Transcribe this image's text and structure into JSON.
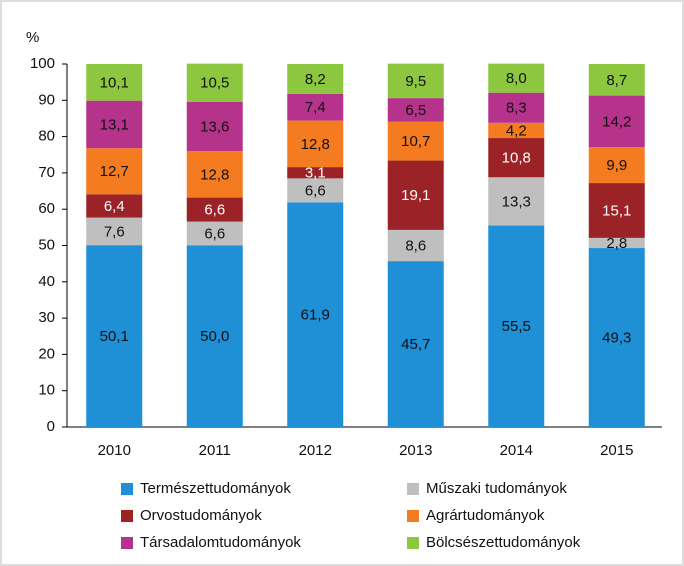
{
  "chart_data": {
    "type": "stacked_bar",
    "y_label": "%",
    "categories": [
      "2010",
      "2011",
      "2012",
      "2013",
      "2014",
      "2015"
    ],
    "series": [
      {
        "name": "Természettudományok",
        "color": "#1f8fd6",
        "values": [
          50.1,
          50.0,
          61.9,
          45.7,
          55.5,
          49.3
        ],
        "value_labels": [
          "50,1",
          "50,0",
          "61,9",
          "45,7",
          "55,5",
          "49,3"
        ]
      },
      {
        "name": "Műszaki tudományok",
        "color": "#bfbfbf",
        "values": [
          7.6,
          6.6,
          6.6,
          8.6,
          13.3,
          2.8
        ],
        "value_labels": [
          "7,6",
          "6,6",
          "6,6",
          "8,6",
          "13,3",
          "2,8"
        ]
      },
      {
        "name": "Orvostudományok",
        "color": "#9b2226",
        "values": [
          6.4,
          6.6,
          3.1,
          19.1,
          10.8,
          15.1
        ],
        "value_labels": [
          "6,4",
          "6,6",
          "3,1",
          "19,1",
          "10,8",
          "15,1"
        ]
      },
      {
        "name": "Agrártudományok",
        "color": "#f47b20",
        "values": [
          12.7,
          12.8,
          12.8,
          10.7,
          4.2,
          9.9
        ],
        "value_labels": [
          "12,7",
          "12,8",
          "12,8",
          "10,7",
          "4,2",
          "9,9"
        ]
      },
      {
        "name": "Társadalomtudományok",
        "color": "#b5338a",
        "values": [
          13.1,
          13.6,
          7.4,
          6.5,
          8.3,
          14.2
        ],
        "value_labels": [
          "13,1",
          "13,6",
          "7,4",
          "6,5",
          "8,3",
          "14,2"
        ]
      },
      {
        "name": "Bölcsészettudományok",
        "color": "#8dc63f",
        "values": [
          10.1,
          10.5,
          8.2,
          9.5,
          8.0,
          8.7
        ],
        "value_labels": [
          "10,1",
          "10,5",
          "8,2",
          "9,5",
          "8,0",
          "8,7"
        ]
      }
    ],
    "ylim": [
      0,
      100
    ],
    "yticks": [
      0,
      10,
      20,
      30,
      40,
      50,
      60,
      70,
      80,
      90,
      100
    ],
    "grid": false
  }
}
